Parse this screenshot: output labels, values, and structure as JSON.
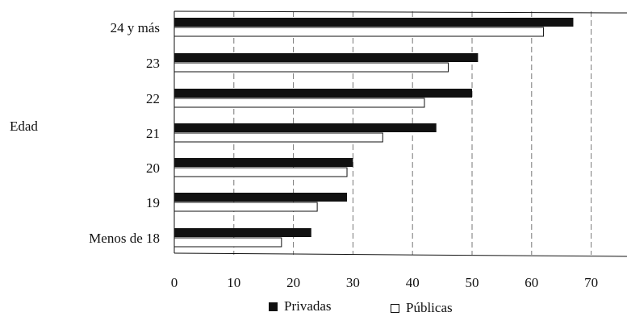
{
  "chart_data": {
    "type": "bar",
    "orientation": "horizontal",
    "ylabel": "Edad",
    "categories": [
      "24 y más",
      "23",
      "22",
      "21",
      "20",
      "19",
      "Menos de 18"
    ],
    "series": [
      {
        "name": "Privadas",
        "values": [
          67,
          51,
          50,
          44,
          30,
          29,
          23
        ],
        "color": "#111111"
      },
      {
        "name": "Públicas",
        "values": [
          62,
          46,
          42,
          35,
          29,
          24,
          18
        ],
        "color": "#ffffff"
      }
    ],
    "x_ticks": [
      0,
      10,
      20,
      30,
      40,
      50,
      60,
      70
    ],
    "xlim": [
      0,
      76
    ],
    "grid": "vertical dashed",
    "legend_position": "bottom"
  }
}
